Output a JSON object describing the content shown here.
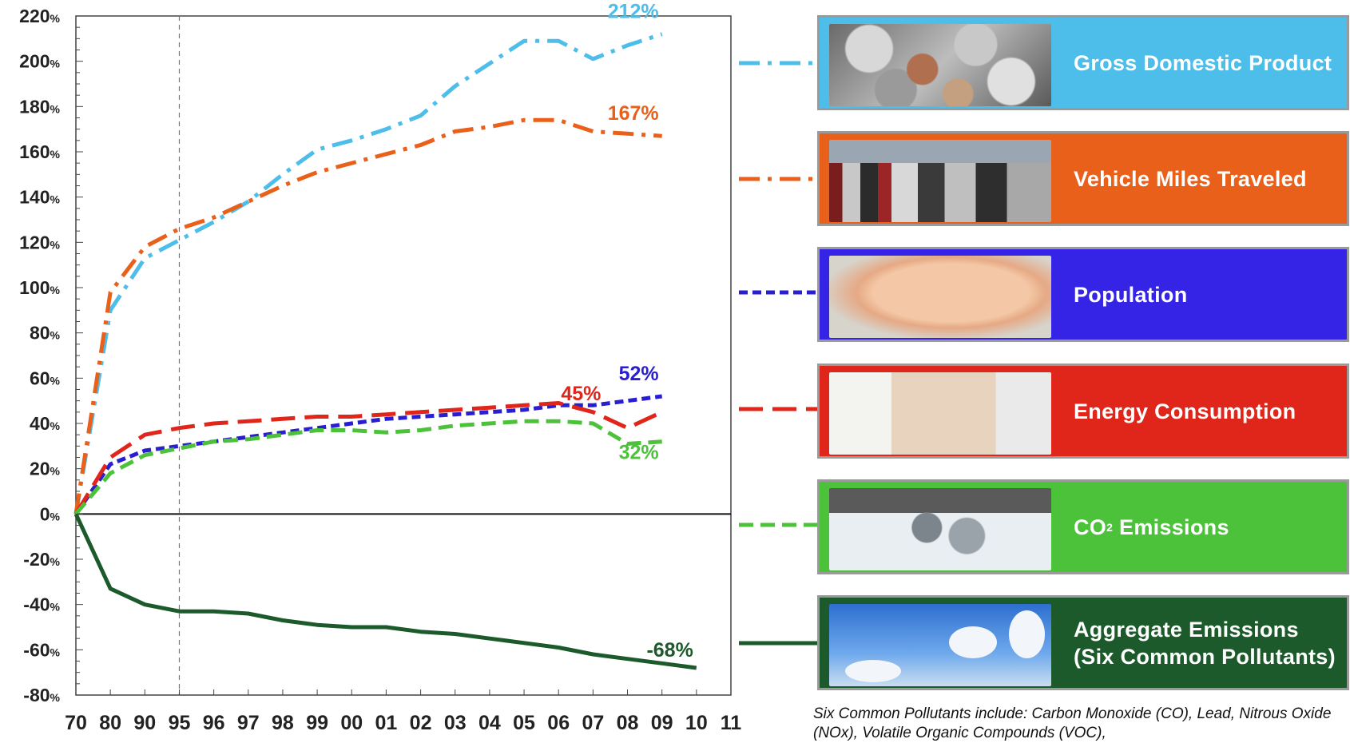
{
  "chart_data": {
    "type": "line",
    "title": "",
    "xlabel": "",
    "ylabel": "",
    "categories": [
      "70",
      "80",
      "90",
      "95",
      "96",
      "97",
      "98",
      "99",
      "00",
      "01",
      "02",
      "03",
      "04",
      "05",
      "06",
      "07",
      "08",
      "09",
      "10",
      "11"
    ],
    "ylim": [
      -80,
      220
    ],
    "y_ticks": [
      "220%",
      "200%",
      "180%",
      "160%",
      "140%",
      "120%",
      "100%",
      "80%",
      "60%",
      "40%",
      "20%",
      "0%",
      "-20%",
      "-40%",
      "-60%",
      "-80%"
    ],
    "y_tick_values": [
      220,
      200,
      180,
      160,
      140,
      120,
      100,
      80,
      60,
      40,
      20,
      0,
      -20,
      -40,
      -60,
      -80
    ],
    "grid": false,
    "reference_line_category": "95",
    "series": [
      {
        "name": "Gross Domestic Product",
        "color": "#4dbde9",
        "style": "dash-dot",
        "values": [
          0,
          90,
          113,
          121,
          129,
          138,
          150,
          161,
          165,
          170,
          176,
          189,
          199,
          209,
          209,
          201,
          207,
          212,
          null,
          null
        ],
        "end_label": "212%"
      },
      {
        "name": "Vehicle Miles Traveled",
        "color": "#e9601b",
        "style": "dash-dot",
        "values": [
          0,
          98,
          118,
          126,
          131,
          138,
          145,
          151,
          155,
          159,
          163,
          169,
          171,
          174,
          174,
          169,
          168,
          167,
          null,
          null
        ],
        "end_label": "167%"
      },
      {
        "name": "Population",
        "color": "#2a1fd0",
        "style": "short-dash",
        "values": [
          0,
          22,
          28,
          30,
          32,
          34,
          36,
          38,
          40,
          42,
          43,
          44,
          45,
          46,
          48,
          48,
          50,
          52,
          null,
          null
        ],
        "end_label": "52%"
      },
      {
        "name": "Energy Consumption",
        "color": "#e0261b",
        "style": "long-dash",
        "values": [
          0,
          25,
          35,
          38,
          40,
          41,
          42,
          43,
          43,
          44,
          45,
          46,
          47,
          48,
          49,
          45,
          38,
          45,
          null,
          null
        ],
        "end_label": "45%"
      },
      {
        "name": "CO2 Emissions",
        "color": "#4cc23a",
        "style": "dash",
        "values": [
          0,
          18,
          26,
          29,
          32,
          33,
          35,
          37,
          37,
          36,
          37,
          39,
          40,
          41,
          41,
          40,
          31,
          32,
          null,
          null
        ],
        "end_label": "32%"
      },
      {
        "name": "Aggregate Emissions (Six Common Pollutants)",
        "color": "#1c5a2b",
        "style": "solid",
        "values": [
          0,
          -33,
          -40,
          -43,
          -43,
          -44,
          -47,
          -49,
          -50,
          -50,
          -52,
          -53,
          -55,
          -57,
          -59,
          -62,
          -64,
          -66,
          -68,
          null
        ],
        "end_label": "-68%"
      }
    ],
    "legend_placement": "right"
  },
  "legend_panels": [
    {
      "label": "Gross Domestic Product",
      "color": "#4dbde9",
      "photo": "coins-photo"
    },
    {
      "label": "Vehicle Miles Traveled",
      "color": "#e9601b",
      "photo": "traffic-photo"
    },
    {
      "label": "Population",
      "color": "#3524e6",
      "photo": "baby-photo"
    },
    {
      "label": "Energy Consumption",
      "color": "#e0261b",
      "photo": "plug-photo"
    },
    {
      "label_main": "CO",
      "label_sub": "2",
      "label_rest": " Emissions",
      "color": "#4cc23a",
      "photo": "exhaust-photo"
    },
    {
      "label_line1": "Aggregate Emissions",
      "label_line2": "(Six Common Pollutants)",
      "color": "#1c5a2b",
      "photo": "smokestacks-photo"
    }
  ],
  "footnote": "Six Common Pollutants include: Carbon Monoxide (CO), Lead, Nitrous Oxide (NOx), Volatile Organic Compounds (VOC),"
}
